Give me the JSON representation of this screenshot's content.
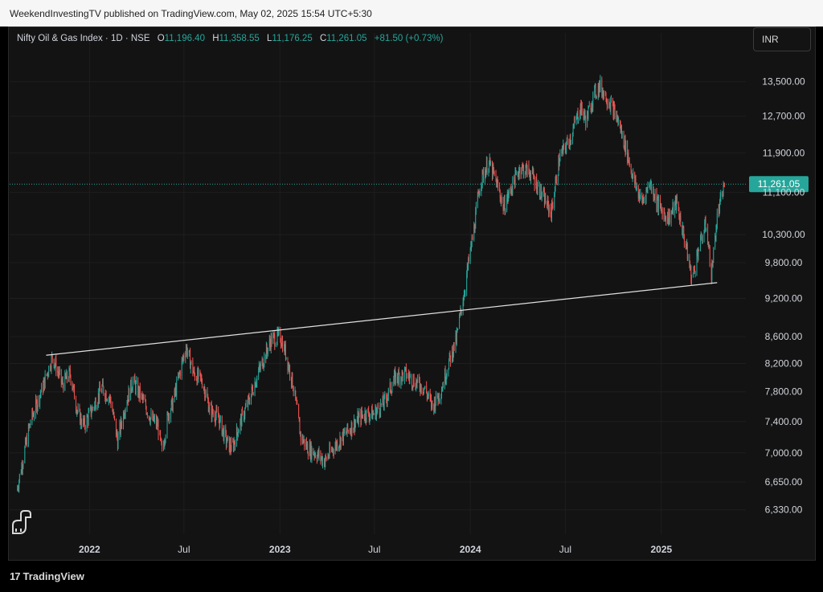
{
  "header": {
    "published_by": "WeekendInvestingTV published on TradingView.com, May 02, 2025 15:54 UTC+5:30"
  },
  "legend": {
    "symbol": "Nifty Oil & Gas Index · 1D · NSE",
    "o_label": "O",
    "o_value": "11,196.40",
    "h_label": "H",
    "h_value": "11,358.55",
    "l_label": "L",
    "l_value": "11,176.25",
    "c_label": "C",
    "c_value": "11,261.05",
    "change": "+81.50 (+0.73%)"
  },
  "currency_button": "INR",
  "footer": {
    "brand": "TradingView",
    "brand_mark": "17"
  },
  "colors": {
    "up": "#26a69a",
    "down": "#ef5350",
    "background": "#131313",
    "text": "#d1d4dc",
    "last_price_bg": "#26a69a",
    "trendline": "#e0e0e0"
  },
  "chart_data": {
    "type": "candlestick",
    "title": "Nifty Oil & Gas Index · 1D · NSE",
    "y_scale": "log",
    "ylim": [
      6150,
      14200
    ],
    "y_ticks": [
      6330,
      6650,
      7000,
      7400,
      7800,
      8200,
      8600,
      9200,
      9800,
      10300,
      11100,
      11900,
      12700,
      13500
    ],
    "y_tick_labels": [
      "6,330.00",
      "6,650.00",
      "7,000.00",
      "7,400.00",
      "7,800.00",
      "8,200.00",
      "8,600.00",
      "9,200.00",
      "9,800.00",
      "10,300.00",
      "11,100.00",
      "11,900.00",
      "12,700.00",
      "13,500.00"
    ],
    "x_ticks": [
      {
        "label": "2022",
        "date": "2022-01-01"
      },
      {
        "label": "Jul",
        "date": "2022-07-01"
      },
      {
        "label": "2023",
        "date": "2023-01-01"
      },
      {
        "label": "Jul",
        "date": "2023-07-01"
      },
      {
        "label": "2024",
        "date": "2024-01-01"
      },
      {
        "label": "Jul",
        "date": "2024-07-01"
      },
      {
        "label": "2025",
        "date": "2025-01-01"
      }
    ],
    "xlim": [
      "2021-08-01",
      "2025-06-12"
    ],
    "last_price": 11261.05,
    "last_price_label": "11,261.05",
    "price_path": [
      [
        "2021-08-15",
        6550
      ],
      [
        "2021-09-10",
        7400
      ],
      [
        "2021-10-05",
        7900
      ],
      [
        "2021-10-22",
        8300
      ],
      [
        "2021-11-10",
        7900
      ],
      [
        "2021-11-25",
        8050
      ],
      [
        "2021-12-10",
        7500
      ],
      [
        "2021-12-22",
        7350
      ],
      [
        "2022-01-05",
        7550
      ],
      [
        "2022-01-25",
        7850
      ],
      [
        "2022-02-10",
        7700
      ],
      [
        "2022-02-24",
        7150
      ],
      [
        "2022-03-10",
        7600
      ],
      [
        "2022-03-25",
        7950
      ],
      [
        "2022-04-12",
        7700
      ],
      [
        "2022-04-28",
        7450
      ],
      [
        "2022-05-12",
        7350
      ],
      [
        "2022-05-20",
        7000
      ],
      [
        "2022-06-01",
        7500
      ],
      [
        "2022-06-10",
        7650
      ],
      [
        "2022-06-24",
        8100
      ],
      [
        "2022-07-05",
        8450
      ],
      [
        "2022-07-20",
        8050
      ],
      [
        "2022-08-05",
        7950
      ],
      [
        "2022-08-20",
        7550
      ],
      [
        "2022-09-05",
        7450
      ],
      [
        "2022-09-20",
        7150
      ],
      [
        "2022-10-01",
        7050
      ],
      [
        "2022-10-15",
        7350
      ],
      [
        "2022-11-01",
        7650
      ],
      [
        "2022-11-15",
        7950
      ],
      [
        "2022-11-30",
        8250
      ],
      [
        "2022-12-15",
        8550
      ],
      [
        "2023-01-02",
        8600
      ],
      [
        "2023-01-12",
        8350
      ],
      [
        "2023-01-26",
        7900
      ],
      [
        "2023-02-10",
        7200
      ],
      [
        "2023-02-25",
        7050
      ],
      [
        "2023-03-10",
        7000
      ],
      [
        "2023-03-28",
        6900
      ],
      [
        "2023-04-12",
        7050
      ],
      [
        "2023-05-01",
        7200
      ],
      [
        "2023-05-20",
        7350
      ],
      [
        "2023-06-10",
        7500
      ],
      [
        "2023-06-30",
        7500
      ],
      [
        "2023-07-20",
        7650
      ],
      [
        "2023-08-10",
        8000
      ],
      [
        "2023-08-30",
        8050
      ],
      [
        "2023-09-15",
        7950
      ],
      [
        "2023-10-05",
        7850
      ],
      [
        "2023-10-20",
        7600
      ],
      [
        "2023-11-05",
        7800
      ],
      [
        "2023-11-20",
        8200
      ],
      [
        "2023-12-05",
        8550
      ],
      [
        "2023-12-20",
        9300
      ],
      [
        "2024-01-08",
        10400
      ],
      [
        "2024-01-20",
        11300
      ],
      [
        "2024-02-05",
        11700
      ],
      [
        "2024-02-20",
        11300
      ],
      [
        "2024-03-05",
        10800
      ],
      [
        "2024-03-20",
        11200
      ],
      [
        "2024-04-05",
        11600
      ],
      [
        "2024-04-25",
        11500
      ],
      [
        "2024-05-10",
        11200
      ],
      [
        "2024-06-04",
        10700
      ],
      [
        "2024-06-20",
        11800
      ],
      [
        "2024-07-10",
        12200
      ],
      [
        "2024-07-30",
        12900
      ],
      [
        "2024-08-10",
        12600
      ],
      [
        "2024-08-25",
        13200
      ],
      [
        "2024-09-05",
        13400
      ],
      [
        "2024-09-25",
        13000
      ],
      [
        "2024-10-10",
        12600
      ],
      [
        "2024-10-25",
        12000
      ],
      [
        "2024-11-10",
        11300
      ],
      [
        "2024-11-25",
        10900
      ],
      [
        "2024-12-10",
        11300
      ],
      [
        "2024-12-28",
        10800
      ],
      [
        "2025-01-15",
        10600
      ],
      [
        "2025-01-30",
        10900
      ],
      [
        "2025-02-15",
        10200
      ],
      [
        "2025-03-01",
        9500
      ],
      [
        "2025-03-12",
        10000
      ],
      [
        "2025-03-28",
        10500
      ],
      [
        "2025-04-07",
        9600
      ],
      [
        "2025-04-18",
        10600
      ],
      [
        "2025-05-02",
        11261
      ]
    ],
    "trendline": [
      [
        "2021-10-10",
        8320
      ],
      [
        "2025-04-18",
        9460
      ]
    ]
  }
}
